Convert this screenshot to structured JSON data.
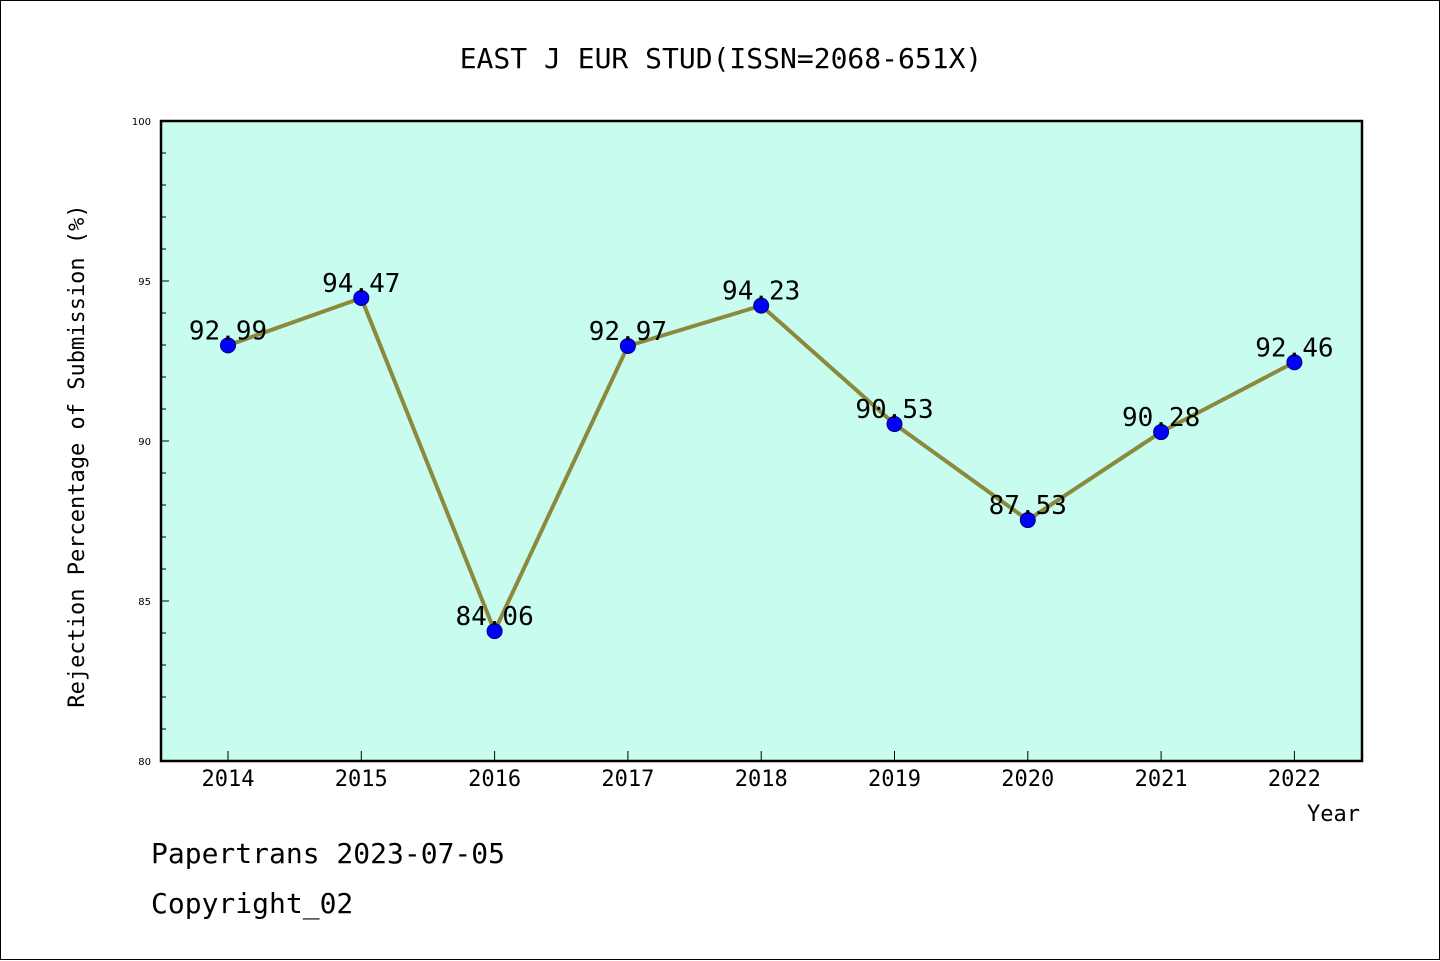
{
  "chart_data": {
    "type": "line",
    "title": "EAST J EUR STUD(ISSN=2068-651X)",
    "xlabel": "Year",
    "ylabel": "Rejection Percentage of Submission (%)",
    "categories": [
      "2014",
      "2015",
      "2016",
      "2017",
      "2018",
      "2019",
      "2020",
      "2021",
      "2022"
    ],
    "values": [
      92.99,
      94.47,
      84.06,
      92.97,
      94.23,
      90.53,
      87.53,
      90.28,
      92.46
    ],
    "data_labels": [
      "92.99",
      "94.47",
      "84.06",
      "92.97",
      "94.23",
      "90.53",
      "87.53",
      "90.28",
      "92.46"
    ],
    "ylim": [
      80,
      100
    ],
    "yticks": [
      "80",
      "85",
      "90",
      "95",
      "100"
    ],
    "grid": false,
    "legend": "none",
    "colors": {
      "plot_background": "#c8fcee",
      "line": "#8b8a3c",
      "marker": "#0000ff"
    }
  },
  "footer": {
    "line1": "Papertrans 2023-07-05",
    "line2": "Copyright_02"
  }
}
